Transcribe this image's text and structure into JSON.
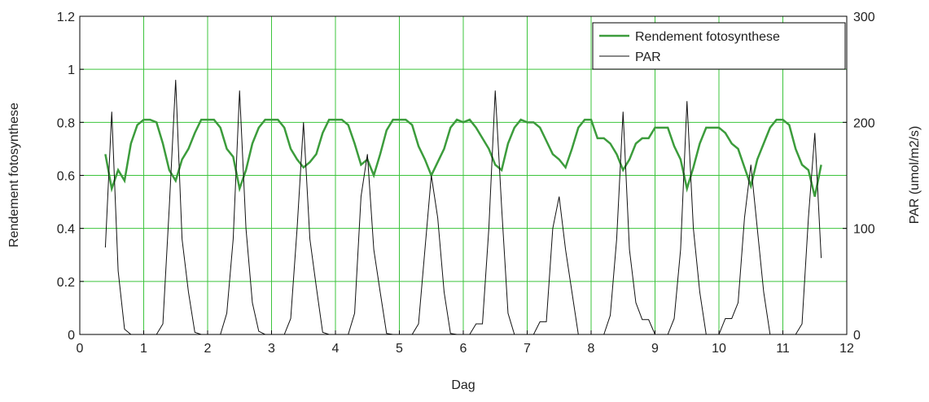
{
  "chart_data": {
    "type": "line",
    "x_label": "Dag",
    "y_label": "Rendement fotosynthese",
    "y2_label": "PAR (umol/m2/s)",
    "xlim": [
      0,
      12
    ],
    "xticks": [
      0,
      1,
      2,
      3,
      4,
      5,
      6,
      7,
      8,
      9,
      10,
      11,
      12
    ],
    "ylim": [
      0,
      1.2
    ],
    "yticks": [
      0,
      0.2,
      0.4,
      0.6,
      0.8,
      1,
      1.2
    ],
    "y2lim": [
      0,
      300
    ],
    "y2ticks": [
      0,
      100,
      200,
      300
    ],
    "grid": true,
    "grid_color": "#3cc43c",
    "legend": "upper right",
    "x": [
      0.4,
      0.5,
      0.6,
      0.7,
      0.8,
      0.9,
      1.0,
      1.1,
      1.2,
      1.3,
      1.4,
      1.5,
      1.6,
      1.7,
      1.8,
      1.9,
      2.0,
      2.1,
      2.2,
      2.3,
      2.4,
      2.5,
      2.6,
      2.7,
      2.8,
      2.9,
      3.0,
      3.1,
      3.2,
      3.3,
      3.4,
      3.5,
      3.6,
      3.7,
      3.8,
      3.9,
      4.0,
      4.1,
      4.2,
      4.3,
      4.4,
      4.5,
      4.6,
      4.7,
      4.8,
      4.9,
      5.0,
      5.1,
      5.2,
      5.3,
      5.4,
      5.5,
      5.6,
      5.7,
      5.8,
      5.9,
      6.0,
      6.1,
      6.2,
      6.3,
      6.4,
      6.5,
      6.6,
      6.7,
      6.8,
      6.9,
      7.0,
      7.1,
      7.2,
      7.3,
      7.4,
      7.5,
      7.6,
      7.7,
      7.8,
      7.9,
      8.0,
      8.1,
      8.2,
      8.3,
      8.4,
      8.5,
      8.6,
      8.7,
      8.8,
      8.9,
      9.0,
      9.1,
      9.2,
      9.3,
      9.4,
      9.5,
      9.6,
      9.7,
      9.8,
      9.9,
      10.0,
      10.1,
      10.2,
      10.3,
      10.4,
      10.5,
      10.6,
      10.7,
      10.8,
      10.9,
      11.0,
      11.1,
      11.2,
      11.3,
      11.4,
      11.5,
      11.6
    ],
    "series": [
      {
        "name": "Rendement fotosynthese",
        "color": "#3c9c3c",
        "axis": "y",
        "values": [
          0.68,
          0.55,
          0.62,
          0.58,
          0.72,
          0.79,
          0.81,
          0.81,
          0.8,
          0.72,
          0.62,
          0.58,
          0.66,
          0.7,
          0.76,
          0.81,
          0.81,
          0.81,
          0.78,
          0.7,
          0.67,
          0.55,
          0.62,
          0.72,
          0.78,
          0.81,
          0.81,
          0.81,
          0.78,
          0.7,
          0.66,
          0.63,
          0.65,
          0.68,
          0.76,
          0.81,
          0.81,
          0.81,
          0.79,
          0.72,
          0.64,
          0.66,
          0.6,
          0.68,
          0.77,
          0.81,
          0.81,
          0.81,
          0.79,
          0.71,
          0.66,
          0.6,
          0.65,
          0.7,
          0.78,
          0.81,
          0.8,
          0.81,
          0.78,
          0.74,
          0.7,
          0.64,
          0.62,
          0.72,
          0.78,
          0.81,
          0.8,
          0.8,
          0.78,
          0.73,
          0.68,
          0.66,
          0.63,
          0.7,
          0.78,
          0.81,
          0.81,
          0.74,
          0.74,
          0.72,
          0.68,
          0.62,
          0.66,
          0.72,
          0.74,
          0.74,
          0.78,
          0.78,
          0.78,
          0.71,
          0.66,
          0.55,
          0.63,
          0.72,
          0.78,
          0.78,
          0.78,
          0.76,
          0.72,
          0.7,
          0.63,
          0.56,
          0.66,
          0.72,
          0.78,
          0.81,
          0.81,
          0.79,
          0.7,
          0.64,
          0.62,
          0.52,
          0.64
        ]
      },
      {
        "name": "PAR",
        "color": "#111111",
        "axis": "y2",
        "values": [
          82,
          210,
          60,
          5,
          0,
          0,
          0,
          0,
          0,
          10,
          120,
          240,
          90,
          40,
          2,
          0,
          0,
          0,
          0,
          20,
          90,
          230,
          100,
          30,
          3,
          0,
          0,
          0,
          0,
          15,
          100,
          200,
          90,
          45,
          2,
          0,
          0,
          0,
          0,
          20,
          130,
          170,
          80,
          40,
          1,
          0,
          0,
          0,
          0,
          10,
          80,
          150,
          110,
          40,
          1,
          0,
          0,
          0,
          10,
          10,
          100,
          230,
          120,
          20,
          0,
          0,
          0,
          0,
          12,
          12,
          100,
          130,
          80,
          40,
          0,
          0,
          0,
          0,
          0,
          18,
          90,
          210,
          80,
          30,
          14,
          14,
          0,
          0,
          0,
          15,
          80,
          220,
          100,
          40,
          0,
          0,
          0,
          15,
          15,
          30,
          110,
          160,
          100,
          40,
          0,
          0,
          0,
          0,
          0,
          10,
          110,
          190,
          72
        ]
      }
    ]
  }
}
